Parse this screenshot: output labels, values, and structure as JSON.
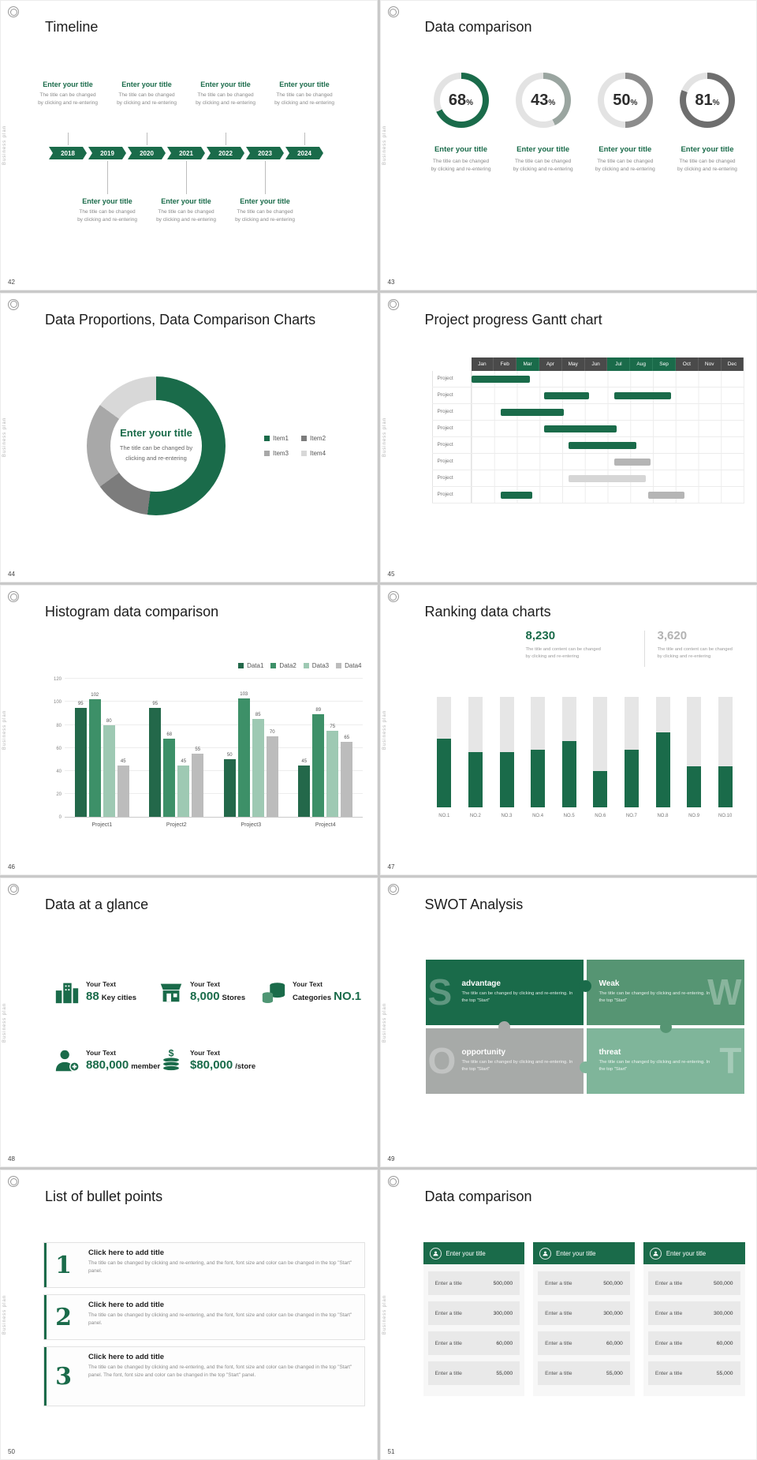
{
  "page": {
    "background": "#c9c9c9",
    "slide_background": "#ffffff"
  },
  "theme": {
    "green": "#1a6b4a",
    "green_mid": "#569573",
    "green_light": "#7fb59a",
    "gray_dark": "#4a4a4a",
    "gray": "#a9a9a9",
    "gray_light": "#e6e6e6"
  },
  "common": {
    "side_label": "Business plan"
  },
  "slides": {
    "s42": {
      "number": "42",
      "title": "Timeline",
      "item_title": "Enter your title",
      "item_desc": [
        "The title can be changed",
        "by clicking and re-entering"
      ],
      "years": [
        "2018",
        "2019",
        "2020",
        "2021",
        "2022",
        "2023",
        "2024"
      ],
      "top_year_indexes": [
        0,
        2,
        4,
        6
      ],
      "bottom_year_indexes": [
        1,
        3,
        5
      ]
    },
    "s43": {
      "number": "43",
      "title": "Data comparison",
      "item_title": "Enter your title",
      "item_desc": [
        "The title can be changed",
        "by clicking and re-entering"
      ],
      "donuts": [
        {
          "percent": 68,
          "color": "#1a6b4a"
        },
        {
          "percent": 43,
          "color": "#9aa5a0"
        },
        {
          "percent": 50,
          "color": "#8c8c8c"
        },
        {
          "percent": 81,
          "color": "#6e6e6e"
        }
      ]
    },
    "s44": {
      "number": "44",
      "title": "Data Proportions, Data Comparison Charts",
      "center_title": "Enter your title",
      "center_desc1": "The title can be changed by",
      "center_desc2": "clicking and re-entering",
      "chart": {
        "type": "donut",
        "segments": [
          {
            "label": "Item1",
            "value": 52,
            "color": "#1a6b4a"
          },
          {
            "label": "Item2",
            "value": 13,
            "color": "#7c7c7c"
          },
          {
            "label": "Item3",
            "value": 20,
            "color": "#a8a8a8"
          },
          {
            "label": "Item4",
            "value": 15,
            "color": "#d8d8d8"
          }
        ]
      }
    },
    "s45": {
      "number": "45",
      "title": "Project progress Gantt chart",
      "months": [
        "Jan",
        "Feb",
        "Mar",
        "Apr",
        "May",
        "Jun",
        "Jul",
        "Aug",
        "Sep",
        "Oct",
        "Nov",
        "Dec"
      ],
      "green_months": [
        2,
        6,
        7,
        8
      ],
      "row_label": "Project",
      "rows": [
        {
          "bars": [
            {
              "start": 0,
              "span": 2.6,
              "color": "green"
            }
          ]
        },
        {
          "bars": [
            {
              "start": 3.2,
              "span": 2.0,
              "color": "green"
            },
            {
              "start": 6.3,
              "span": 2.5,
              "color": "green"
            }
          ]
        },
        {
          "bars": [
            {
              "start": 1.3,
              "span": 2.8,
              "color": "green"
            }
          ]
        },
        {
          "bars": [
            {
              "start": 3.2,
              "span": 3.2,
              "color": "green"
            }
          ]
        },
        {
          "bars": [
            {
              "start": 4.3,
              "span": 3.0,
              "color": "green"
            }
          ]
        },
        {
          "bars": [
            {
              "start": 6.3,
              "span": 1.6,
              "color": "gray"
            }
          ]
        },
        {
          "bars": [
            {
              "start": 4.3,
              "span": 3.4,
              "color": "lightgray"
            }
          ]
        },
        {
          "bars": [
            {
              "start": 1.3,
              "span": 1.4,
              "color": "green"
            },
            {
              "start": 7.8,
              "span": 1.6,
              "color": "gray"
            }
          ]
        }
      ]
    },
    "s46": {
      "number": "46",
      "title": "Histogram data comparison",
      "chart": {
        "type": "bar",
        "legend": [
          "Data1",
          "Data2",
          "Data3",
          "Data4"
        ],
        "colors": [
          "#23684a",
          "#3d9068",
          "#9ec9b3",
          "#bcbcbc"
        ],
        "categories": [
          "Project1",
          "Project2",
          "Project3",
          "Project4"
        ],
        "series": [
          {
            "name": "Data1",
            "values": [
              95,
              95,
              50,
              45
            ]
          },
          {
            "name": "Data2",
            "values": [
              102,
              68,
              103,
              89
            ]
          },
          {
            "name": "Data3",
            "values": [
              80,
              45,
              85,
              75
            ]
          },
          {
            "name": "Data4",
            "values": [
              45,
              55,
              70,
              65
            ]
          }
        ],
        "y_ticks": [
          0,
          20,
          40,
          60,
          80,
          100,
          120
        ],
        "y_max": 120
      }
    },
    "s47": {
      "number": "47",
      "title": "Ranking data charts",
      "stat_primary": {
        "value": "8,230",
        "desc1": "The title and content can be changed",
        "desc2": "by clicking and re-entering"
      },
      "stat_secondary": {
        "value": "3,620",
        "desc1": "The title and content can be changed",
        "desc2": "by clicking and re-entering"
      },
      "chart": {
        "type": "bar",
        "categories": [
          "NO.1",
          "NO.2",
          "NO.3",
          "NO.4",
          "NO.5",
          "NO.6",
          "NO.7",
          "NO.8",
          "NO.9",
          "NO.10"
        ],
        "values": [
          62,
          50,
          50,
          52,
          60,
          33,
          52,
          68,
          37,
          37
        ],
        "track_value": 100
      }
    },
    "s48": {
      "number": "48",
      "title": "Data at a glance",
      "stats": [
        {
          "icon": "city-icon",
          "label": "Your Text",
          "big": "88",
          "small": "Key cities"
        },
        {
          "icon": "store-icon",
          "label": "Your Text",
          "big": "8,000",
          "small": "Stores"
        },
        {
          "icon": "categories-icon",
          "label": "Your Text",
          "big": "NO.1",
          "small": "Categories"
        },
        {
          "icon": "member-icon",
          "label": "Your Text",
          "big": "880,000",
          "small": "member"
        },
        {
          "icon": "money-icon",
          "label": "Your Text",
          "big": "$80,000",
          "small": "/store"
        }
      ]
    },
    "s49": {
      "number": "49",
      "title": "SWOT Analysis",
      "tiles": [
        {
          "letter": "S",
          "title": "advantage",
          "color": "#1a6b4a",
          "desc": "The title can be changed by clicking and re-entering. In the top \"Start\""
        },
        {
          "letter": "W",
          "title": "Weak",
          "color": "#569573",
          "desc": "The title can be changed by clicking and re-entering. In the top \"Start\""
        },
        {
          "letter": "O",
          "title": "opportunity",
          "color": "#a7aaa8",
          "desc": "The title can be changed by clicking and re-entering. In the top \"Start\""
        },
        {
          "letter": "T",
          "title": "threat",
          "color": "#7fb59a",
          "desc": "The title can be changed by clicking and re-entering. In the top \"Start\""
        }
      ]
    },
    "s50": {
      "number": "50",
      "title": "List of bullet points",
      "items": [
        {
          "num": "1",
          "title": "Click here to add title",
          "desc": "The title can be changed by clicking and re-entering, and the font, font size and color can be changed in the top \"Start\" panel."
        },
        {
          "num": "2",
          "title": "Click here to add title",
          "desc": "The title can be changed by clicking and re-entering, and the font, font size and color can be changed in the top \"Start\" panel."
        },
        {
          "num": "3",
          "title": "Click here to add title",
          "desc": "The title can be changed by clicking and re-entering, and the font, font size and color can be changed in the top \"Start\" panel. The font, font size and color can be changed in the top \"Start\" panel."
        }
      ]
    },
    "s51": {
      "number": "51",
      "title": "Data comparison",
      "card_title": "Enter your title",
      "card_count": 3,
      "row_label": "Enter a title",
      "row_values": [
        "500,000",
        "300,000",
        "60,000",
        "55,000"
      ]
    }
  }
}
